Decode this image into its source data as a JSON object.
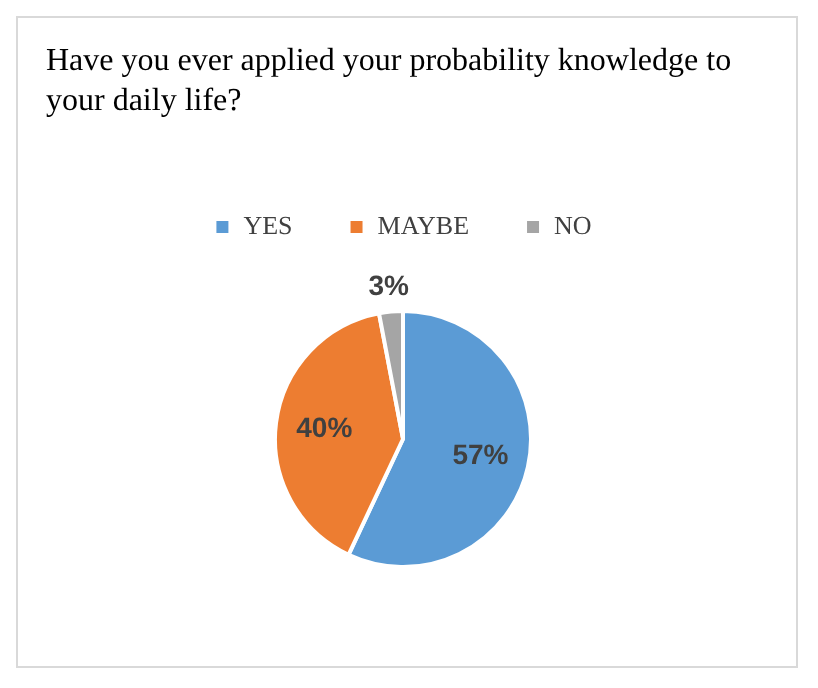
{
  "chart_data": {
    "type": "pie",
    "title": "Have you ever applied your probability knowledge to your daily life?",
    "categories": [
      "YES",
      "MAYBE",
      "NO"
    ],
    "values": [
      57,
      40,
      3
    ],
    "colors": [
      "#5b9bd5",
      "#ed7d31",
      "#a5a5a5"
    ],
    "value_labels": [
      "57%",
      "40%",
      "3%"
    ],
    "legend": "top"
  }
}
